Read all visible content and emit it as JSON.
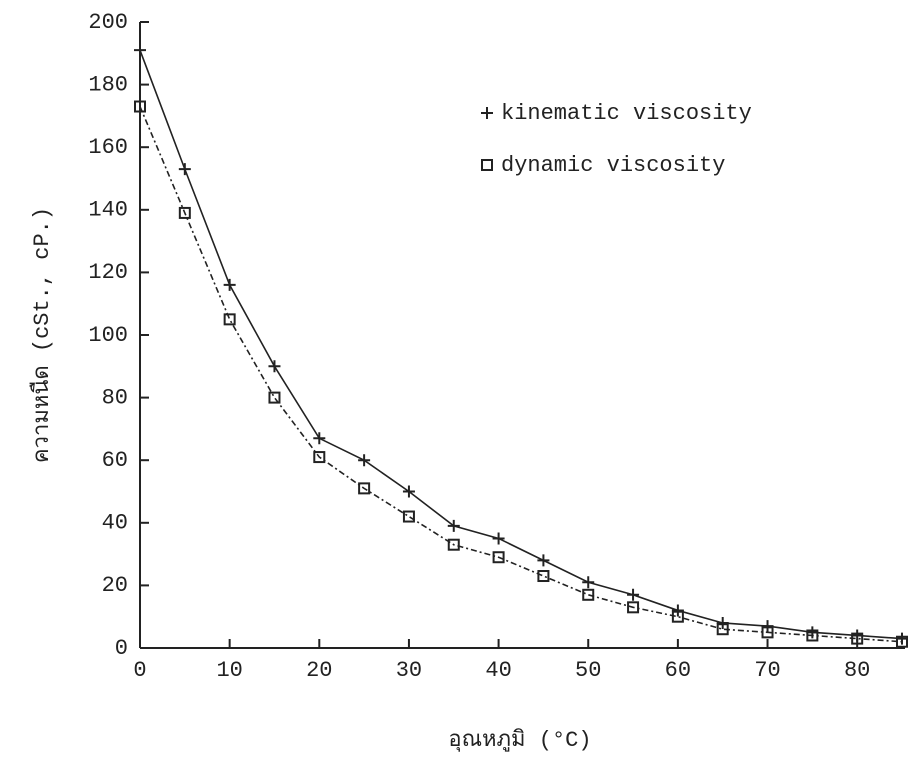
{
  "chart_data": {
    "type": "line",
    "x_label": "อุณหภูมิ (°C)",
    "y_label": "ความหนืด (cSt., cP.)",
    "x": [
      0,
      5,
      10,
      15,
      20,
      25,
      30,
      35,
      40,
      45,
      50,
      55,
      60,
      65,
      70,
      75,
      80,
      85
    ],
    "series": [
      {
        "name": "kinematic viscosity",
        "color": "#222222",
        "marker": "plus",
        "line_style": "solid",
        "values": [
          191,
          153,
          116,
          90,
          67,
          60,
          50,
          39,
          35,
          28,
          21,
          17,
          12,
          8,
          7,
          5,
          4,
          3
        ]
      },
      {
        "name": "dynamic viscosity",
        "color": "#222222",
        "marker": "square",
        "line_style": "dashdot",
        "values": [
          173,
          139,
          105,
          80,
          61,
          51,
          42,
          33,
          29,
          23,
          17,
          13,
          10,
          6,
          5,
          4,
          3,
          2
        ]
      }
    ],
    "xlim": [
      0,
      85
    ],
    "xticks": [
      0,
      10,
      20,
      30,
      40,
      50,
      60,
      70,
      80
    ],
    "ylim": [
      0,
      200
    ],
    "yticks": [
      0,
      20,
      40,
      60,
      80,
      100,
      120,
      140,
      160,
      180,
      200
    ],
    "legend": "upper right",
    "grid": false
  }
}
